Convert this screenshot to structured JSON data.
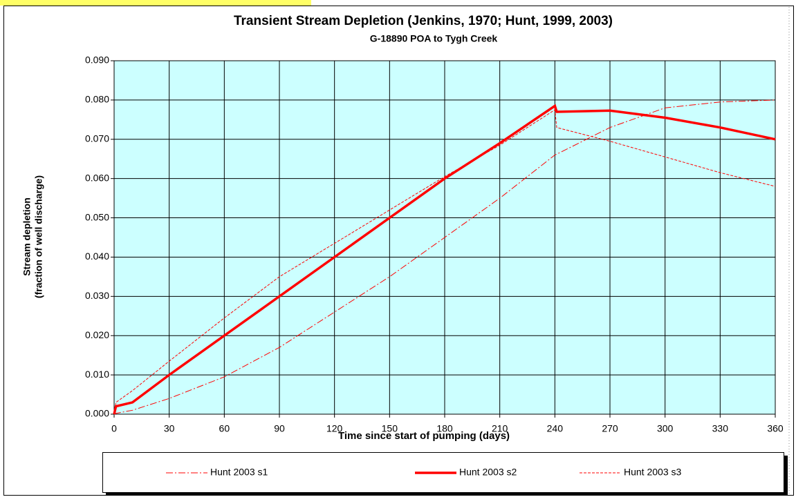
{
  "chart_data": {
    "type": "line",
    "title": "Transient Stream Depletion (Jenkins, 1970; Hunt, 1999, 2003)",
    "subtitle": "G-18890 POA to Tygh Creek",
    "x_label": "Time since start of pumping (days)",
    "y_label": [
      "Stream depletion",
      "(fraction of well discharge)"
    ],
    "x": [
      0,
      1,
      10,
      30,
      60,
      90,
      120,
      150,
      180,
      210,
      240,
      241,
      270,
      300,
      330,
      360
    ],
    "series": [
      {
        "name": "Hunt 2003 s1",
        "color": "#ff0000",
        "line_style": "dash-dot",
        "line_width": 1,
        "values": [
          0,
          0.0002,
          0.001,
          0.004,
          0.0095,
          0.017,
          0.026,
          0.035,
          0.045,
          0.055,
          0.066,
          0.0662,
          0.073,
          0.078,
          0.0795,
          0.08
        ]
      },
      {
        "name": "Hunt 2003 s2",
        "color": "#ff0000",
        "line_style": "solid",
        "line_width": 3.5,
        "values": [
          0,
          0.002,
          0.003,
          0.01,
          0.02,
          0.03,
          0.04,
          0.05,
          0.06,
          0.069,
          0.0785,
          0.077,
          0.0773,
          0.0755,
          0.073,
          0.07
        ]
      },
      {
        "name": "Hunt 2003 s3",
        "color": "#ff0000",
        "line_style": "dash",
        "line_width": 1,
        "values": [
          0,
          0.003,
          0.006,
          0.0135,
          0.0245,
          0.035,
          0.0435,
          0.052,
          0.0605,
          0.0685,
          0.0775,
          0.073,
          0.0695,
          0.0655,
          0.0615,
          0.058
        ]
      }
    ],
    "xlim": [
      0,
      360
    ],
    "xticks": [
      0,
      30,
      60,
      90,
      120,
      150,
      180,
      210,
      240,
      270,
      300,
      330,
      360
    ],
    "ylim": [
      0,
      0.09
    ],
    "yticks": [
      {
        "value": 0,
        "label": "0.000"
      },
      {
        "value": 0.01,
        "label": "0.010"
      },
      {
        "value": 0.02,
        "label": "0.020"
      },
      {
        "value": 0.03,
        "label": "0.030"
      },
      {
        "value": 0.04,
        "label": "0.040"
      },
      {
        "value": 0.05,
        "label": "0.050"
      },
      {
        "value": 0.06,
        "label": "0.060"
      },
      {
        "value": 0.07,
        "label": "0.070"
      },
      {
        "value": 0.08,
        "label": "0.080"
      },
      {
        "value": 0.09,
        "label": "0.090"
      }
    ],
    "grid": true,
    "plot_background": "#ccffff",
    "legend": "bottom"
  }
}
